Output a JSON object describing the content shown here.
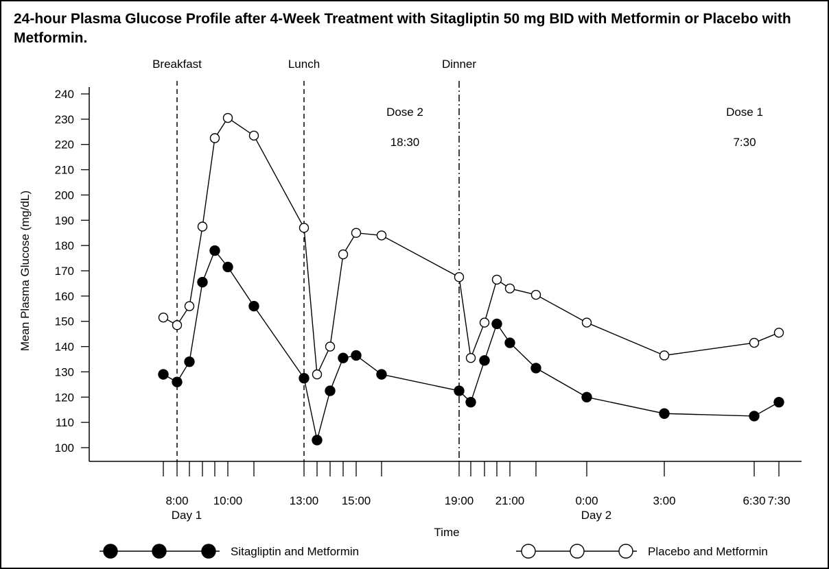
{
  "chart_data": {
    "type": "line",
    "title": "24-hour Plasma Glucose Profile after 4-Week Treatment with Sitagliptin 50 mg BID with Metformin or Placebo with Metformin.",
    "ylabel": "Mean Plasma Glucose (mg/dL)",
    "xlabel": "Time",
    "ylim": [
      100,
      240
    ],
    "yticks": [
      100,
      110,
      120,
      130,
      140,
      150,
      160,
      170,
      180,
      190,
      200,
      210,
      220,
      230,
      240
    ],
    "xticks": [
      "7:30",
      "8:00",
      "8:30",
      "9:00",
      "9:30",
      "10:00",
      "11:00",
      "13:00",
      "13:30",
      "14:00",
      "14:30",
      "15:00",
      "16:00",
      "19:00",
      "19:30",
      "20:00",
      "20:30",
      "21:00",
      "22:00",
      "0:00",
      "3:00",
      "6:30",
      "7:30"
    ],
    "xtick_labels": [
      {
        "tick": "8:00",
        "text": "8:00"
      },
      {
        "tick": "10:00",
        "text": "10:00"
      },
      {
        "tick": "13:00",
        "text": "13:00"
      },
      {
        "tick": "15:00",
        "text": "15:00"
      },
      {
        "tick": "19:00",
        "text": "19:00"
      },
      {
        "tick": "21:00",
        "text": "21:00"
      },
      {
        "tick": "0:00",
        "text": "0:00"
      },
      {
        "tick": "3:00",
        "text": "3:00"
      },
      {
        "tick": "6:30",
        "text": "6:30"
      },
      {
        "tick": "7:30",
        "text": "7:30"
      }
    ],
    "day_labels": [
      {
        "tick": "8:00",
        "text": "Day 1"
      },
      {
        "tick": "0:00",
        "text": "Day 2"
      }
    ],
    "meals": [
      {
        "tick": "8:00",
        "label": "Breakfast",
        "line": "dashed"
      },
      {
        "tick": "13:00",
        "label": "Lunch",
        "line": "dashed"
      },
      {
        "tick": "19:00",
        "label": "Dinner",
        "line": "dashdot"
      }
    ],
    "annotations": [
      {
        "text": "Dose 1",
        "near_tick": "7:30",
        "value": 233
      },
      {
        "text": "7:30",
        "near_tick": "7:30",
        "value": 221
      },
      {
        "text": "Dose 2",
        "near_tick": "16:00",
        "value": 233
      },
      {
        "text": "18:30",
        "near_tick": "16:00",
        "value": 221
      }
    ],
    "series": [
      {
        "name": "Sitagliptin and Metformin",
        "marker": "filled-circle",
        "points": [
          {
            "x": "7:30",
            "y": 129
          },
          {
            "x": "8:00",
            "y": 126
          },
          {
            "x": "8:30",
            "y": 134
          },
          {
            "x": "9:00",
            "y": 165.5
          },
          {
            "x": "9:30",
            "y": 178
          },
          {
            "x": "10:00",
            "y": 171.5
          },
          {
            "x": "11:00",
            "y": 156
          },
          {
            "x": "13:00",
            "y": 127.5
          },
          {
            "x": "13:30",
            "y": 103
          },
          {
            "x": "14:00",
            "y": 122.5
          },
          {
            "x": "14:30",
            "y": 135.5
          },
          {
            "x": "15:00",
            "y": 136.5
          },
          {
            "x": "16:00",
            "y": 129
          },
          {
            "x": "19:00",
            "y": 122.5
          },
          {
            "x": "19:30",
            "y": 118
          },
          {
            "x": "20:00",
            "y": 134.5
          },
          {
            "x": "20:30",
            "y": 149
          },
          {
            "x": "21:00",
            "y": 141.5
          },
          {
            "x": "22:00",
            "y": 131.5
          },
          {
            "x": "0:00",
            "y": 120
          },
          {
            "x": "3:00",
            "y": 113.5
          },
          {
            "x": "6:30",
            "y": 112.5
          },
          {
            "x": "7:30",
            "y": 118
          }
        ]
      },
      {
        "name": "Placebo and Metformin",
        "marker": "open-circle",
        "points": [
          {
            "x": "7:30",
            "y": 151.5
          },
          {
            "x": "8:00",
            "y": 148.5
          },
          {
            "x": "8:30",
            "y": 156
          },
          {
            "x": "9:00",
            "y": 187.5
          },
          {
            "x": "9:30",
            "y": 222.5
          },
          {
            "x": "10:00",
            "y": 230.5
          },
          {
            "x": "11:00",
            "y": 223.5
          },
          {
            "x": "13:00",
            "y": 187
          },
          {
            "x": "13:30",
            "y": 129
          },
          {
            "x": "14:00",
            "y": 140
          },
          {
            "x": "14:30",
            "y": 176.5
          },
          {
            "x": "15:00",
            "y": 185
          },
          {
            "x": "16:00",
            "y": 184
          },
          {
            "x": "19:00",
            "y": 167.5
          },
          {
            "x": "19:30",
            "y": 135.5
          },
          {
            "x": "20:00",
            "y": 149.5
          },
          {
            "x": "20:30",
            "y": 166.5
          },
          {
            "x": "21:00",
            "y": 163
          },
          {
            "x": "22:00",
            "y": 160.5
          },
          {
            "x": "0:00",
            "y": 149.5
          },
          {
            "x": "3:00",
            "y": 136.5
          },
          {
            "x": "6:30",
            "y": 141.5
          },
          {
            "x": "7:30",
            "y": 145.5
          }
        ]
      }
    ],
    "legend": {
      "placement": "bottom"
    },
    "grid": false
  }
}
